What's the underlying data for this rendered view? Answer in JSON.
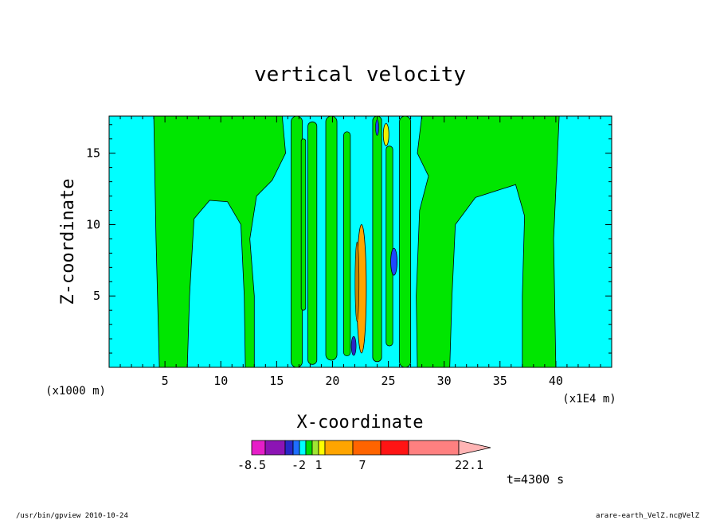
{
  "chart_data": {
    "type": "heatmap",
    "title": "vertical velocity",
    "xlabel": "X-coordinate",
    "ylabel": "Z-coordinate",
    "x_unit_left": "(x1000 m)",
    "x_unit_right": "(x1E4 m)",
    "xlim": [
      0,
      45
    ],
    "ylim": [
      0,
      17.6
    ],
    "x_ticks": [
      5,
      10,
      15,
      20,
      25,
      30,
      35,
      40
    ],
    "y_ticks": [
      5,
      10,
      15
    ],
    "time_label": "t=4300 s",
    "colorbar": {
      "levels": [
        -8.5,
        -7,
        -5,
        -3,
        -2,
        -1,
        0,
        1,
        2,
        3,
        7,
        12,
        17,
        22.1
      ],
      "colors": [
        "#e61ec8",
        "#8c14b4",
        "#2828c8",
        "#1e6eff",
        "#00ffff",
        "#00dc00",
        "#a0e632",
        "#ffff00",
        "#ffa500",
        "#ff6400",
        "#ff1414",
        "#ff8080",
        "#ffb4b4"
      ],
      "tick_labels": [
        "-8.5",
        "-2",
        "1",
        "7",
        "22.1"
      ],
      "tick_values": [
        -8.5,
        -2,
        1,
        7,
        22.1
      ]
    },
    "grid": false
  },
  "footer": {
    "left": "/usr/bin/gpview   2010-10-24",
    "right": "arare-earth_VelZ.nc@VelZ"
  },
  "colors": {
    "cyan": "#00ffff",
    "green": "#00e600",
    "blue": "#1e46ff",
    "yellow": "#f0f000",
    "orange": "#ffa500"
  }
}
